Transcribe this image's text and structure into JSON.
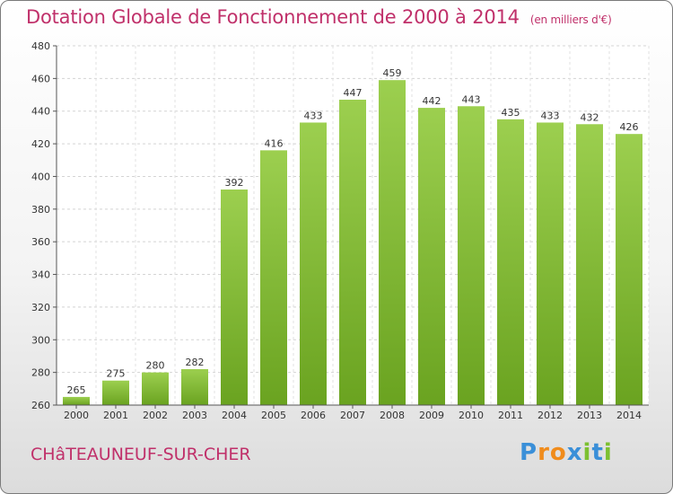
{
  "chart_data": {
    "type": "bar",
    "title": "Dotation Globale de Fonctionnement de 2000 à 2014",
    "unit_note": "(en milliers d'€)",
    "categories": [
      "2000",
      "2001",
      "2002",
      "2003",
      "2004",
      "2005",
      "2006",
      "2007",
      "2008",
      "2009",
      "2010",
      "2011",
      "2012",
      "2013",
      "2014"
    ],
    "values": [
      265,
      275,
      280,
      282,
      392,
      416,
      433,
      447,
      459,
      442,
      443,
      435,
      433,
      432,
      426
    ],
    "ylim": [
      260,
      480
    ],
    "yticks": [
      260,
      280,
      300,
      320,
      340,
      360,
      380,
      400,
      420,
      440,
      460,
      480
    ],
    "grid": true,
    "bar_color_light": "#9ccf4f",
    "bar_color_dark": "#6aa320",
    "title_color": "#c0306a"
  },
  "commune": "CHâTEAUNEUF-SUR-CHER",
  "logo": {
    "letters": [
      "P",
      "r",
      "o",
      "x",
      "i",
      "t",
      "i"
    ],
    "colors": [
      "#3a8fd8",
      "#f08c1c",
      "#f08c1c",
      "#3a8fd8",
      "#7cc030",
      "#3a8fd8",
      "#7cc030"
    ]
  }
}
